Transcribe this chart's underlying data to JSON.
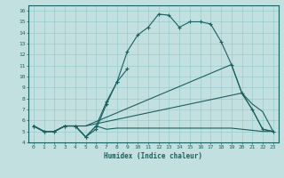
{
  "xlabel": "Humidex (Indice chaleur)",
  "bg_color": "#c2e0e0",
  "grid_color": "#99cccc",
  "line_color": "#1a6060",
  "line1": {
    "x": [
      0,
      1,
      2,
      3,
      4,
      5,
      6,
      7,
      8,
      9,
      10,
      11,
      12,
      13,
      14,
      15,
      16,
      17,
      18,
      19,
      20,
      21,
      22,
      23
    ],
    "y": [
      5.5,
      5.0,
      5.0,
      5.5,
      5.5,
      4.5,
      5.2,
      7.5,
      9.5,
      12.3,
      13.8,
      14.5,
      15.7,
      15.6,
      14.5,
      15.0,
      15.0,
      14.8,
      13.2,
      11.1,
      8.5,
      7.0,
      5.2,
      5.0
    ]
  },
  "line2": {
    "x": [
      0,
      1,
      2,
      3,
      4,
      5,
      6,
      7,
      8,
      9
    ],
    "y": [
      5.5,
      5.0,
      5.0,
      5.5,
      5.5,
      4.5,
      5.5,
      7.7,
      9.5,
      10.7
    ]
  },
  "line3": {
    "x": [
      0,
      1,
      2,
      3,
      4,
      5,
      6,
      7,
      8,
      9,
      10,
      11,
      12,
      13,
      14,
      15,
      16,
      17,
      18,
      19,
      20,
      21,
      22,
      23
    ],
    "y": [
      5.5,
      5.0,
      5.0,
      5.5,
      5.5,
      4.5,
      5.5,
      5.2,
      5.3,
      5.3,
      5.3,
      5.3,
      5.3,
      5.3,
      5.3,
      5.3,
      5.3,
      5.3,
      5.3,
      5.3,
      5.2,
      5.1,
      5.0,
      5.0
    ]
  },
  "line4": {
    "x": [
      0,
      1,
      2,
      3,
      4,
      5,
      19,
      20,
      21,
      22,
      23
    ],
    "y": [
      5.5,
      5.0,
      5.0,
      5.5,
      5.5,
      5.5,
      11.1,
      8.5,
      7.0,
      5.2,
      5.0
    ]
  },
  "line5": {
    "x": [
      0,
      1,
      2,
      3,
      4,
      5,
      20,
      21,
      22,
      23
    ],
    "y": [
      5.5,
      5.0,
      5.0,
      5.5,
      5.5,
      5.5,
      8.5,
      7.5,
      6.8,
      5.0
    ]
  },
  "xticks": [
    0,
    1,
    2,
    3,
    4,
    5,
    6,
    7,
    8,
    9,
    10,
    11,
    12,
    13,
    14,
    15,
    16,
    17,
    18,
    19,
    20,
    21,
    22,
    23
  ],
  "yticks": [
    4,
    5,
    6,
    7,
    8,
    9,
    10,
    11,
    12,
    13,
    14,
    15,
    16
  ],
  "xlim": [
    -0.5,
    23.5
  ],
  "ylim": [
    4.0,
    16.5
  ]
}
